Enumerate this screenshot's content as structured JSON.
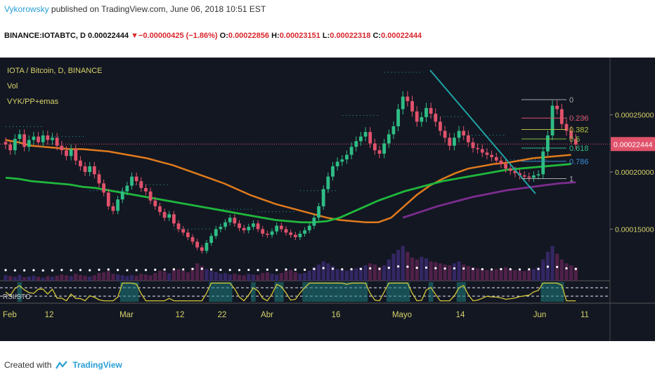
{
  "header": {
    "author": "Vykorowsky",
    "published": " published on TradingView.com, June 06, 2018 10:51 EST"
  },
  "symbol_bar": {
    "symbol": "BINANCE:IOTABTC, D",
    "last": "0.00022444",
    "change": "−0.00000425 (−1.86%)",
    "o_label": "O:",
    "o": "0.00022856",
    "h_label": "H:",
    "h": "0.00023151",
    "l_label": "L:",
    "l": "0.00022318",
    "c_label": "C:",
    "c": "0.00022444"
  },
  "footer": {
    "created_with": "Created with",
    "brand": "TradingView"
  },
  "colors": {
    "background": "#131722",
    "up": "#2ebd85",
    "down": "#e0526b",
    "ema_orange": "#e07b1c",
    "ema_green": "#1fb83c",
    "ema_purple": "#7b2d8e",
    "trendline": "#1fa3a3",
    "price_tag": "#e0526b"
  },
  "chart_data": {
    "type": "candlestick",
    "legend": [
      "IOTA / Bitcoin, D, BINANCE",
      "Vol",
      "VYK/PP+emas"
    ],
    "x_ticks": [
      "Feb",
      "12",
      "Mar",
      "12",
      "22",
      "Abr",
      "16",
      "Mayo",
      "14",
      "Jun",
      "11"
    ],
    "y_ticks": [
      "0.00025000",
      "0.00020000",
      "0.00015000"
    ],
    "ylim": [
      0.000111,
      0.000294
    ],
    "last_price_label": "0.00022444",
    "fib_levels": [
      {
        "label": "0",
        "value": 0.0002633
      },
      {
        "label": "0.236",
        "value": 0.0002472
      },
      {
        "label": "0.382",
        "value": 0.0002372
      },
      {
        "label": "0.5",
        "value": 0.0002289
      },
      {
        "label": "0.618",
        "value": 0.0002209
      },
      {
        "label": "0.786",
        "value": 0.0002093
      },
      {
        "label": "1",
        "value": 0.0001942
      }
    ],
    "closes": [
      0.000224,
      0.000219,
      0.000229,
      0.000233,
      0.000222,
      0.000228,
      0.000231,
      0.000226,
      0.000232,
      0.000228,
      0.00023,
      0.000223,
      0.000219,
      0.000214,
      0.00022,
      0.00021,
      0.000205,
      0.0002,
      0.000205,
      0.000198,
      0.00019,
      0.000182,
      0.00017,
      0.000166,
      0.000176,
      0.000183,
      0.000188,
      0.000196,
      0.000192,
      0.000186,
      0.000183,
      0.000175,
      0.00017,
      0.000165,
      0.00016,
      0.000163,
      0.000155,
      0.00015,
      0.000147,
      0.000143,
      0.000139,
      0.000134,
      0.000131,
      0.000138,
      0.000144,
      0.00015,
      0.000152,
      0.000156,
      0.00016,
      0.000155,
      0.000151,
      0.000149,
      0.000152,
      0.000155,
      0.00015,
      0.000146,
      0.000145,
      0.000148,
      0.000153,
      0.00015,
      0.000147,
      0.000145,
      0.000143,
      0.000146,
      0.000149,
      0.000153,
      0.00016,
      0.00017,
      0.000185,
      0.000196,
      0.000205,
      0.000209,
      0.000211,
      0.000215,
      0.000222,
      0.000227,
      0.000231,
      0.000235,
      0.000225,
      0.000219,
      0.000216,
      0.000225,
      0.000233,
      0.00024,
      0.000255,
      0.000266,
      0.000262,
      0.000253,
      0.000244,
      0.000248,
      0.000256,
      0.000251,
      0.000244,
      0.000236,
      0.00023,
      0.000223,
      0.00023,
      0.000236,
      0.000232,
      0.000226,
      0.000221,
      0.00022,
      0.000217,
      0.000215,
      0.000213,
      0.00021,
      0.000207,
      0.000203,
      0.000201,
      0.000199,
      0.000197,
      0.000196,
      0.000195,
      0.000197,
      0.000198,
      0.000218,
      0.000232,
      0.000258,
      0.000255,
      0.000242,
      0.000236,
      0.000229,
      0.000224
    ],
    "ema_orange": [
      0.000228,
      0.000226,
      0.000223,
      0.000222,
      0.000221,
      0.00022,
      0.00022,
      0.000219,
      0.000218,
      0.000216,
      0.000214,
      0.000212,
      0.000209,
      0.000206,
      0.000202,
      0.000198,
      0.000194,
      0.00019,
      0.000185,
      0.00018,
      0.000176,
      0.000172,
      0.000169,
      0.000166,
      0.000163,
      0.00016,
      0.000158,
      0.000157,
      0.000156,
      0.000156,
      0.00016,
      0.00017,
      0.00018,
      0.000188,
      0.000194,
      0.000199,
      0.000203,
      0.000205,
      0.000207,
      0.000208,
      0.00021,
      0.000212,
      0.000213,
      0.000214,
      0.000215
    ],
    "ema_green": [
      0.000195,
      0.000194,
      0.000192,
      0.000191,
      0.00019,
      0.000189,
      0.000187,
      0.000186,
      0.000184,
      0.000182,
      0.00018,
      0.000178,
      0.000176,
      0.000174,
      0.000172,
      0.00017,
      0.000168,
      0.000166,
      0.000164,
      0.000162,
      0.00016,
      0.000158,
      0.000157,
      0.000156,
      0.000156,
      0.000157,
      0.00016,
      0.000165,
      0.00017,
      0.000175,
      0.000179,
      0.000183,
      0.000186,
      0.000189,
      0.000192,
      0.000194,
      0.000196,
      0.000198,
      0.0002,
      0.000202,
      0.000203,
      0.000204,
      0.000205,
      0.000206,
      0.000207
    ],
    "ema_purple": [
      0.00016,
      0.000165,
      0.00017,
      0.000174,
      0.000178,
      0.000181,
      0.000184,
      0.000186,
      0.000188,
      0.00019,
      0.000191
    ],
    "volume": [
      0.14,
      0.12,
      0.1,
      0.15,
      0.09,
      0.11,
      0.13,
      0.1,
      0.08,
      0.12,
      0.1,
      0.13,
      0.16,
      0.14,
      0.12,
      0.18,
      0.15,
      0.13,
      0.11,
      0.14,
      0.2,
      0.22,
      0.25,
      0.18,
      0.16,
      0.14,
      0.12,
      0.15,
      0.13,
      0.18,
      0.16,
      0.14,
      0.2,
      0.26,
      0.24,
      0.19,
      0.28,
      0.3,
      0.26,
      0.22,
      0.34,
      0.45,
      0.38,
      0.3,
      0.25,
      0.22,
      0.18,
      0.2,
      0.16,
      0.18,
      0.15,
      0.14,
      0.18,
      0.16,
      0.15,
      0.2,
      0.22,
      0.18,
      0.16,
      0.2,
      0.25,
      0.28,
      0.22,
      0.18,
      0.2,
      0.26,
      0.35,
      0.42,
      0.5,
      0.45,
      0.38,
      0.3,
      0.28,
      0.26,
      0.3,
      0.32,
      0.35,
      0.4,
      0.45,
      0.42,
      0.36,
      0.4,
      0.55,
      0.7,
      0.8,
      0.9,
      0.75,
      0.6,
      0.55,
      0.62,
      0.58,
      0.5,
      0.48,
      0.45,
      0.42,
      0.4,
      0.45,
      0.5,
      0.42,
      0.38,
      0.35,
      0.32,
      0.3,
      0.28,
      0.26,
      0.3,
      0.32,
      0.35,
      0.3,
      0.28,
      0.26,
      0.25,
      0.28,
      0.3,
      0.35,
      0.55,
      0.75,
      0.9,
      0.7,
      0.55,
      0.45,
      0.4,
      0.35
    ],
    "rsi_panel_label": "RSI/STO"
  }
}
